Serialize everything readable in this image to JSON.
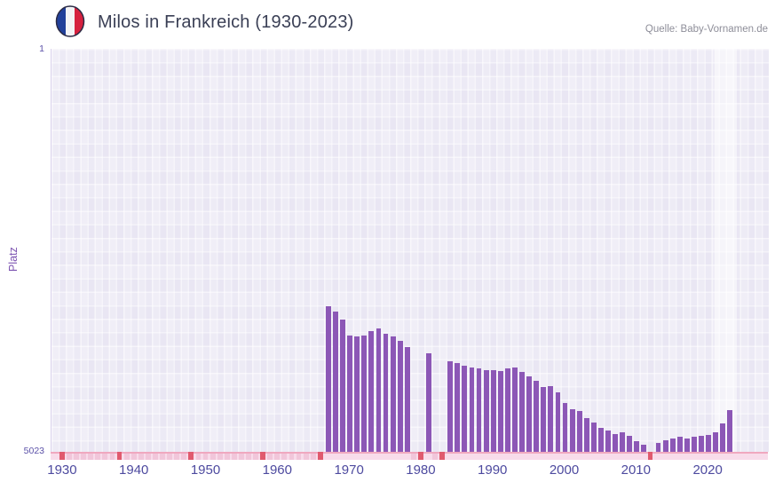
{
  "header": {
    "title": "Milos in Frankreich (1930-2023)",
    "source": "Quelle: Baby-Vornamen.de"
  },
  "axes": {
    "y_label": "Platz",
    "y_top_tick": "1",
    "y_bottom_tick": "5023"
  },
  "chart_data": {
    "type": "bar",
    "title": "Milos in Frankreich (1930-2023)",
    "xlabel": "",
    "ylabel": "Platz",
    "y_axis_inverted": true,
    "y_range": [
      1,
      5023
    ],
    "y_ticks": [
      "1",
      "5023"
    ],
    "x_range_years": [
      1928.4,
      2028.4
    ],
    "x_ticks": [
      "1930",
      "1940",
      "1950",
      "1960",
      "1970",
      "1980",
      "1990",
      "2000",
      "2010",
      "2020"
    ],
    "grid": true,
    "legend": "none",
    "highlight_band_years": [
      2020.8,
      2023.9
    ],
    "series": [
      {
        "name": "Platz",
        "points": [
          {
            "year": 1967,
            "rank": 3210
          },
          {
            "year": 1968,
            "rank": 3280
          },
          {
            "year": 1969,
            "rank": 3370
          },
          {
            "year": 1970,
            "rank": 3570
          },
          {
            "year": 1971,
            "rank": 3590
          },
          {
            "year": 1972,
            "rank": 3570
          },
          {
            "year": 1973,
            "rank": 3520
          },
          {
            "year": 1974,
            "rank": 3480
          },
          {
            "year": 1975,
            "rank": 3550
          },
          {
            "year": 1976,
            "rank": 3590
          },
          {
            "year": 1977,
            "rank": 3640
          },
          {
            "year": 1978,
            "rank": 3720
          },
          {
            "year": 1981,
            "rank": 3790
          },
          {
            "year": 1984,
            "rank": 3900
          },
          {
            "year": 1985,
            "rank": 3920
          },
          {
            "year": 1986,
            "rank": 3950
          },
          {
            "year": 1987,
            "rank": 3970
          },
          {
            "year": 1988,
            "rank": 3980
          },
          {
            "year": 1989,
            "rank": 4010
          },
          {
            "year": 1990,
            "rank": 4000
          },
          {
            "year": 1991,
            "rank": 4020
          },
          {
            "year": 1992,
            "rank": 3980
          },
          {
            "year": 1993,
            "rank": 3970
          },
          {
            "year": 1994,
            "rank": 4030
          },
          {
            "year": 1995,
            "rank": 4080
          },
          {
            "year": 1996,
            "rank": 4140
          },
          {
            "year": 1997,
            "rank": 4220
          },
          {
            "year": 1998,
            "rank": 4200
          },
          {
            "year": 1999,
            "rank": 4280
          },
          {
            "year": 2000,
            "rank": 4410
          },
          {
            "year": 2001,
            "rank": 4490
          },
          {
            "year": 2002,
            "rank": 4510
          },
          {
            "year": 2003,
            "rank": 4600
          },
          {
            "year": 2004,
            "rank": 4660
          },
          {
            "year": 2005,
            "rank": 4720
          },
          {
            "year": 2006,
            "rank": 4760
          },
          {
            "year": 2007,
            "rank": 4800
          },
          {
            "year": 2008,
            "rank": 4780
          },
          {
            "year": 2009,
            "rank": 4820
          },
          {
            "year": 2010,
            "rank": 4890
          },
          {
            "year": 2011,
            "rank": 4930
          },
          {
            "year": 2013,
            "rank": 4910
          },
          {
            "year": 2014,
            "rank": 4880
          },
          {
            "year": 2015,
            "rank": 4860
          },
          {
            "year": 2016,
            "rank": 4840
          },
          {
            "year": 2017,
            "rank": 4860
          },
          {
            "year": 2018,
            "rank": 4830
          },
          {
            "year": 2019,
            "rank": 4820
          },
          {
            "year": 2020,
            "rank": 4810
          },
          {
            "year": 2021,
            "rank": 4780
          },
          {
            "year": 2022,
            "rank": 4670
          },
          {
            "year": 2023,
            "rank": 4500
          }
        ]
      }
    ],
    "no_data_years": [
      1930,
      1931,
      1932,
      1933,
      1934,
      1935,
      1936,
      1937,
      1938,
      1939,
      1940,
      1941,
      1942,
      1943,
      1944,
      1945,
      1946,
      1947,
      1948,
      1949,
      1950,
      1951,
      1952,
      1953,
      1954,
      1955,
      1956,
      1957,
      1958,
      1959,
      1960,
      1961,
      1962,
      1963,
      1964,
      1965,
      1966,
      1979,
      1980,
      1982,
      1983,
      2012
    ],
    "no_data_red_years": [
      1930,
      1938,
      1948,
      1958,
      1966,
      1980,
      1983,
      2012
    ],
    "colors": {
      "bar": "#8c57b6",
      "plot_bg": "#e9e6f3",
      "grid_line": "#ffffff",
      "axis_text": "#4d4a9f",
      "y_tick_text": "#5b51a8",
      "ylabel_text": "#7b52b0",
      "axis_line": "#f0a8bf",
      "strip_bg": "#f8dcea",
      "nodata_mark": "#f1c6da",
      "red_mark": "#e05a6e",
      "title_text": "#3a3f55",
      "source_text": "#8e8e99",
      "highlight": "rgba(255,255,255,0.5)",
      "flag_blue": "#21409a",
      "flag_white": "#f4f4f6",
      "flag_red": "#d6213e"
    }
  }
}
